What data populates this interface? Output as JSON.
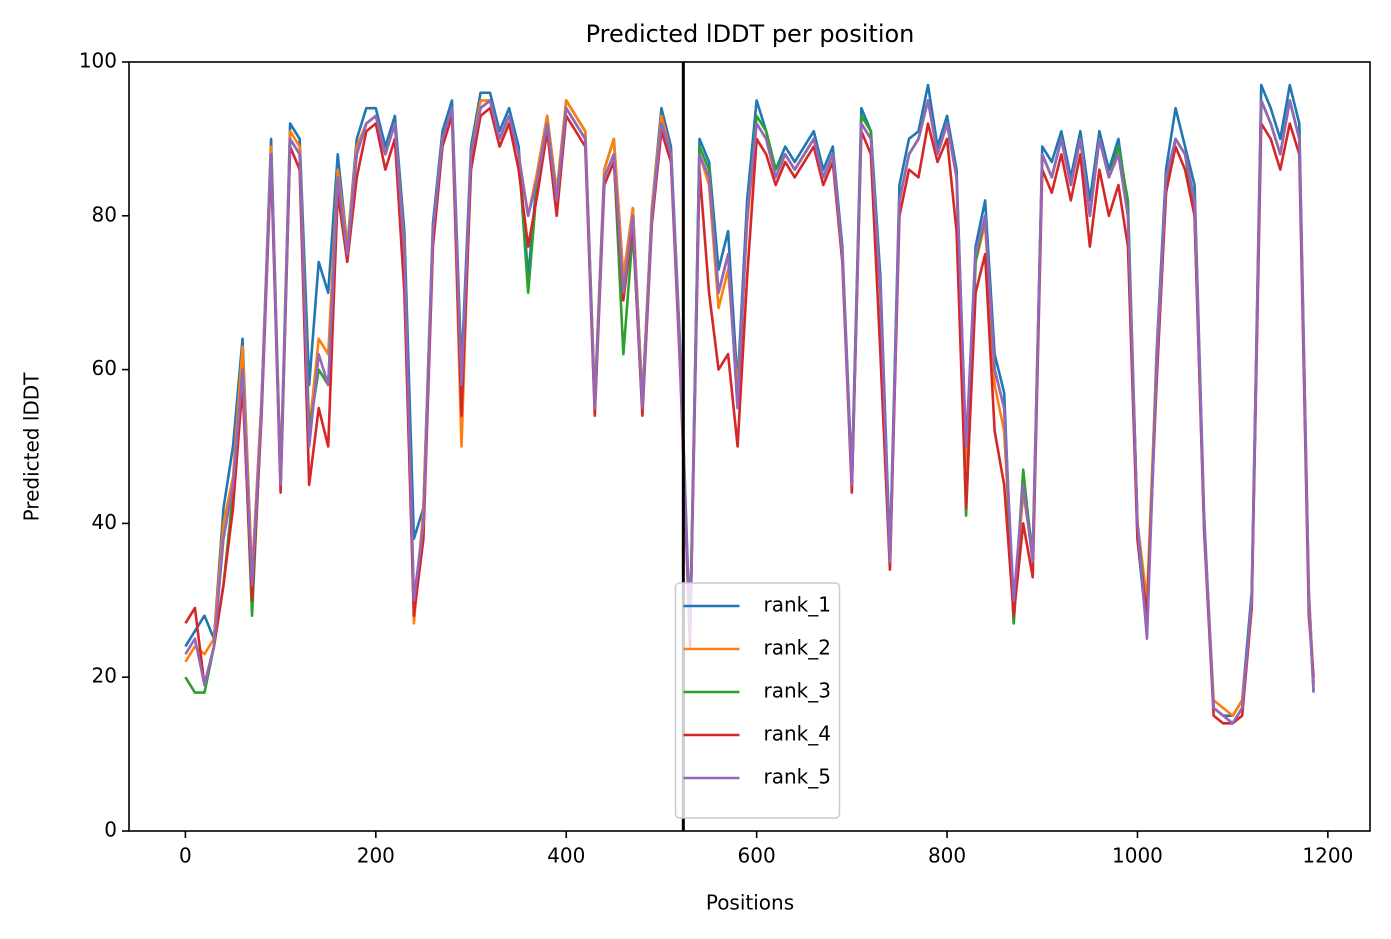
{
  "chart_data": {
    "type": "line",
    "title": "Predicted lDDT per position",
    "xlabel": "Positions",
    "ylabel": "Predicted lDDT",
    "x": [
      0,
      10,
      20,
      30,
      40,
      50,
      60,
      70,
      80,
      90,
      100,
      110,
      120,
      130,
      140,
      150,
      160,
      170,
      180,
      190,
      200,
      210,
      220,
      230,
      240,
      250,
      260,
      270,
      280,
      290,
      300,
      310,
      320,
      330,
      340,
      350,
      360,
      370,
      380,
      390,
      400,
      410,
      420,
      430,
      440,
      450,
      460,
      470,
      480,
      490,
      500,
      510,
      520,
      530,
      540,
      550,
      560,
      570,
      580,
      590,
      600,
      610,
      620,
      630,
      640,
      650,
      660,
      670,
      680,
      690,
      700,
      710,
      720,
      730,
      740,
      750,
      760,
      770,
      780,
      790,
      800,
      810,
      820,
      830,
      840,
      850,
      860,
      870,
      880,
      890,
      900,
      910,
      920,
      930,
      940,
      950,
      960,
      970,
      980,
      990,
      1000,
      1010,
      1020,
      1030,
      1040,
      1050,
      1060,
      1070,
      1080,
      1090,
      1100,
      1110,
      1120,
      1130,
      1140,
      1150,
      1160,
      1170,
      1180,
      1185
    ],
    "series": [
      {
        "name": "rank_1",
        "color": "#1f77b4",
        "values": [
          24,
          26,
          28,
          25,
          42,
          50,
          64,
          33,
          56,
          90,
          46,
          92,
          90,
          58,
          74,
          70,
          88,
          76,
          90,
          94,
          94,
          89,
          93,
          78,
          38,
          42,
          79,
          91,
          95,
          60,
          89,
          96,
          96,
          91,
          94,
          89,
          72,
          86,
          93,
          83,
          95,
          93,
          91,
          56,
          86,
          90,
          72,
          81,
          56,
          81,
          94,
          89,
          62,
          26,
          90,
          87,
          73,
          78,
          58,
          82,
          95,
          91,
          86,
          89,
          87,
          89,
          91,
          86,
          89,
          76,
          46,
          94,
          91,
          72,
          36,
          84,
          90,
          91,
          97,
          89,
          93,
          86,
          49,
          76,
          82,
          62,
          57,
          27,
          46,
          36,
          89,
          87,
          91,
          85,
          91,
          82,
          91,
          86,
          90,
          81,
          38,
          26,
          62,
          86,
          94,
          89,
          84,
          41,
          16,
          15,
          15,
          17,
          31,
          97,
          94,
          90,
          97,
          92,
          31,
          19
        ]
      },
      {
        "name": "rank_2",
        "color": "#ff7f0e",
        "values": [
          22,
          24,
          23,
          25,
          40,
          46,
          63,
          33,
          56,
          89,
          46,
          91,
          89,
          52,
          64,
          62,
          86,
          76,
          89,
          92,
          93,
          88,
          92,
          76,
          27,
          42,
          78,
          90,
          94,
          50,
          88,
          95,
          95,
          90,
          93,
          88,
          80,
          86,
          93,
          83,
          95,
          93,
          91,
          56,
          86,
          90,
          72,
          81,
          56,
          81,
          93,
          88,
          61,
          25,
          88,
          84,
          68,
          73,
          57,
          79,
          92,
          90,
          85,
          88,
          86,
          88,
          90,
          85,
          88,
          75,
          45,
          92,
          90,
          70,
          34,
          82,
          88,
          90,
          95,
          88,
          92,
          85,
          46,
          74,
          79,
          58,
          52,
          29,
          44,
          36,
          88,
          85,
          90,
          84,
          90,
          80,
          90,
          85,
          88,
          80,
          40,
          30,
          61,
          84,
          90,
          88,
          82,
          40,
          17,
          16,
          15,
          17,
          29,
          95,
          92,
          88,
          95,
          90,
          31,
          19
        ]
      },
      {
        "name": "rank_3",
        "color": "#2ca02c",
        "values": [
          20,
          18,
          18,
          24,
          32,
          44,
          60,
          28,
          55,
          88,
          45,
          90,
          88,
          52,
          60,
          58,
          85,
          75,
          88,
          92,
          93,
          88,
          92,
          75,
          30,
          40,
          78,
          90,
          94,
          58,
          88,
          94,
          95,
          90,
          93,
          88,
          70,
          85,
          92,
          82,
          94,
          92,
          90,
          55,
          85,
          88,
          62,
          78,
          55,
          80,
          92,
          88,
          60,
          25,
          89,
          86,
          70,
          75,
          55,
          80,
          93,
          91,
          86,
          88,
          86,
          88,
          90,
          85,
          88,
          75,
          45,
          93,
          91,
          70,
          35,
          82,
          88,
          90,
          95,
          88,
          92,
          85,
          41,
          74,
          80,
          60,
          55,
          27,
          47,
          35,
          88,
          85,
          90,
          84,
          90,
          80,
          90,
          85,
          89,
          82,
          40,
          27,
          60,
          83,
          90,
          88,
          80,
          40,
          16,
          15,
          14,
          16,
          30,
          95,
          92,
          88,
          95,
          90,
          30,
          18
        ]
      },
      {
        "name": "rank_4",
        "color": "#d62728",
        "values": [
          27,
          29,
          19,
          24,
          32,
          42,
          58,
          30,
          54,
          87,
          44,
          89,
          86,
          45,
          55,
          50,
          83,
          74,
          85,
          91,
          92,
          86,
          90,
          70,
          28,
          38,
          76,
          89,
          93,
          54,
          86,
          93,
          94,
          89,
          92,
          86,
          76,
          83,
          91,
          80,
          93,
          91,
          89,
          54,
          84,
          87,
          69,
          79,
          54,
          79,
          91,
          87,
          59,
          24,
          86,
          70,
          60,
          62,
          50,
          72,
          90,
          88,
          84,
          87,
          85,
          87,
          89,
          84,
          87,
          74,
          44,
          91,
          88,
          62,
          34,
          80,
          86,
          85,
          92,
          87,
          90,
          78,
          42,
          70,
          75,
          52,
          45,
          28,
          40,
          33,
          86,
          83,
          88,
          82,
          88,
          76,
          86,
          80,
          84,
          76,
          38,
          28,
          58,
          83,
          89,
          86,
          80,
          39,
          15,
          14,
          14,
          15,
          29,
          92,
          90,
          86,
          92,
          88,
          28,
          20
        ]
      },
      {
        "name": "rank_5",
        "color": "#9467bd",
        "values": [
          23,
          25,
          19,
          24,
          38,
          45,
          60,
          32,
          55,
          88,
          45,
          90,
          88,
          50,
          62,
          58,
          85,
          75,
          88,
          92,
          93,
          88,
          92,
          75,
          30,
          40,
          78,
          90,
          94,
          58,
          88,
          94,
          95,
          90,
          93,
          88,
          80,
          85,
          92,
          82,
          94,
          92,
          90,
          55,
          85,
          88,
          70,
          80,
          55,
          80,
          92,
          88,
          60,
          25,
          88,
          85,
          70,
          75,
          55,
          80,
          92,
          90,
          85,
          88,
          86,
          88,
          90,
          85,
          88,
          75,
          45,
          92,
          90,
          70,
          35,
          82,
          88,
          90,
          95,
          88,
          92,
          85,
          50,
          75,
          80,
          60,
          55,
          30,
          45,
          35,
          88,
          85,
          90,
          84,
          90,
          80,
          90,
          85,
          88,
          80,
          40,
          25,
          60,
          85,
          90,
          88,
          82,
          40,
          16,
          15,
          14,
          16,
          30,
          95,
          92,
          88,
          95,
          90,
          30,
          18
        ]
      }
    ],
    "vline": 523,
    "xlim": [
      -59.25,
      1244.25
    ],
    "ylim": [
      0,
      100
    ],
    "xticks": [
      0,
      200,
      400,
      600,
      800,
      1000,
      1200
    ],
    "yticks": [
      0,
      20,
      40,
      60,
      80,
      100
    ],
    "grid": false,
    "legend": "lower center"
  }
}
